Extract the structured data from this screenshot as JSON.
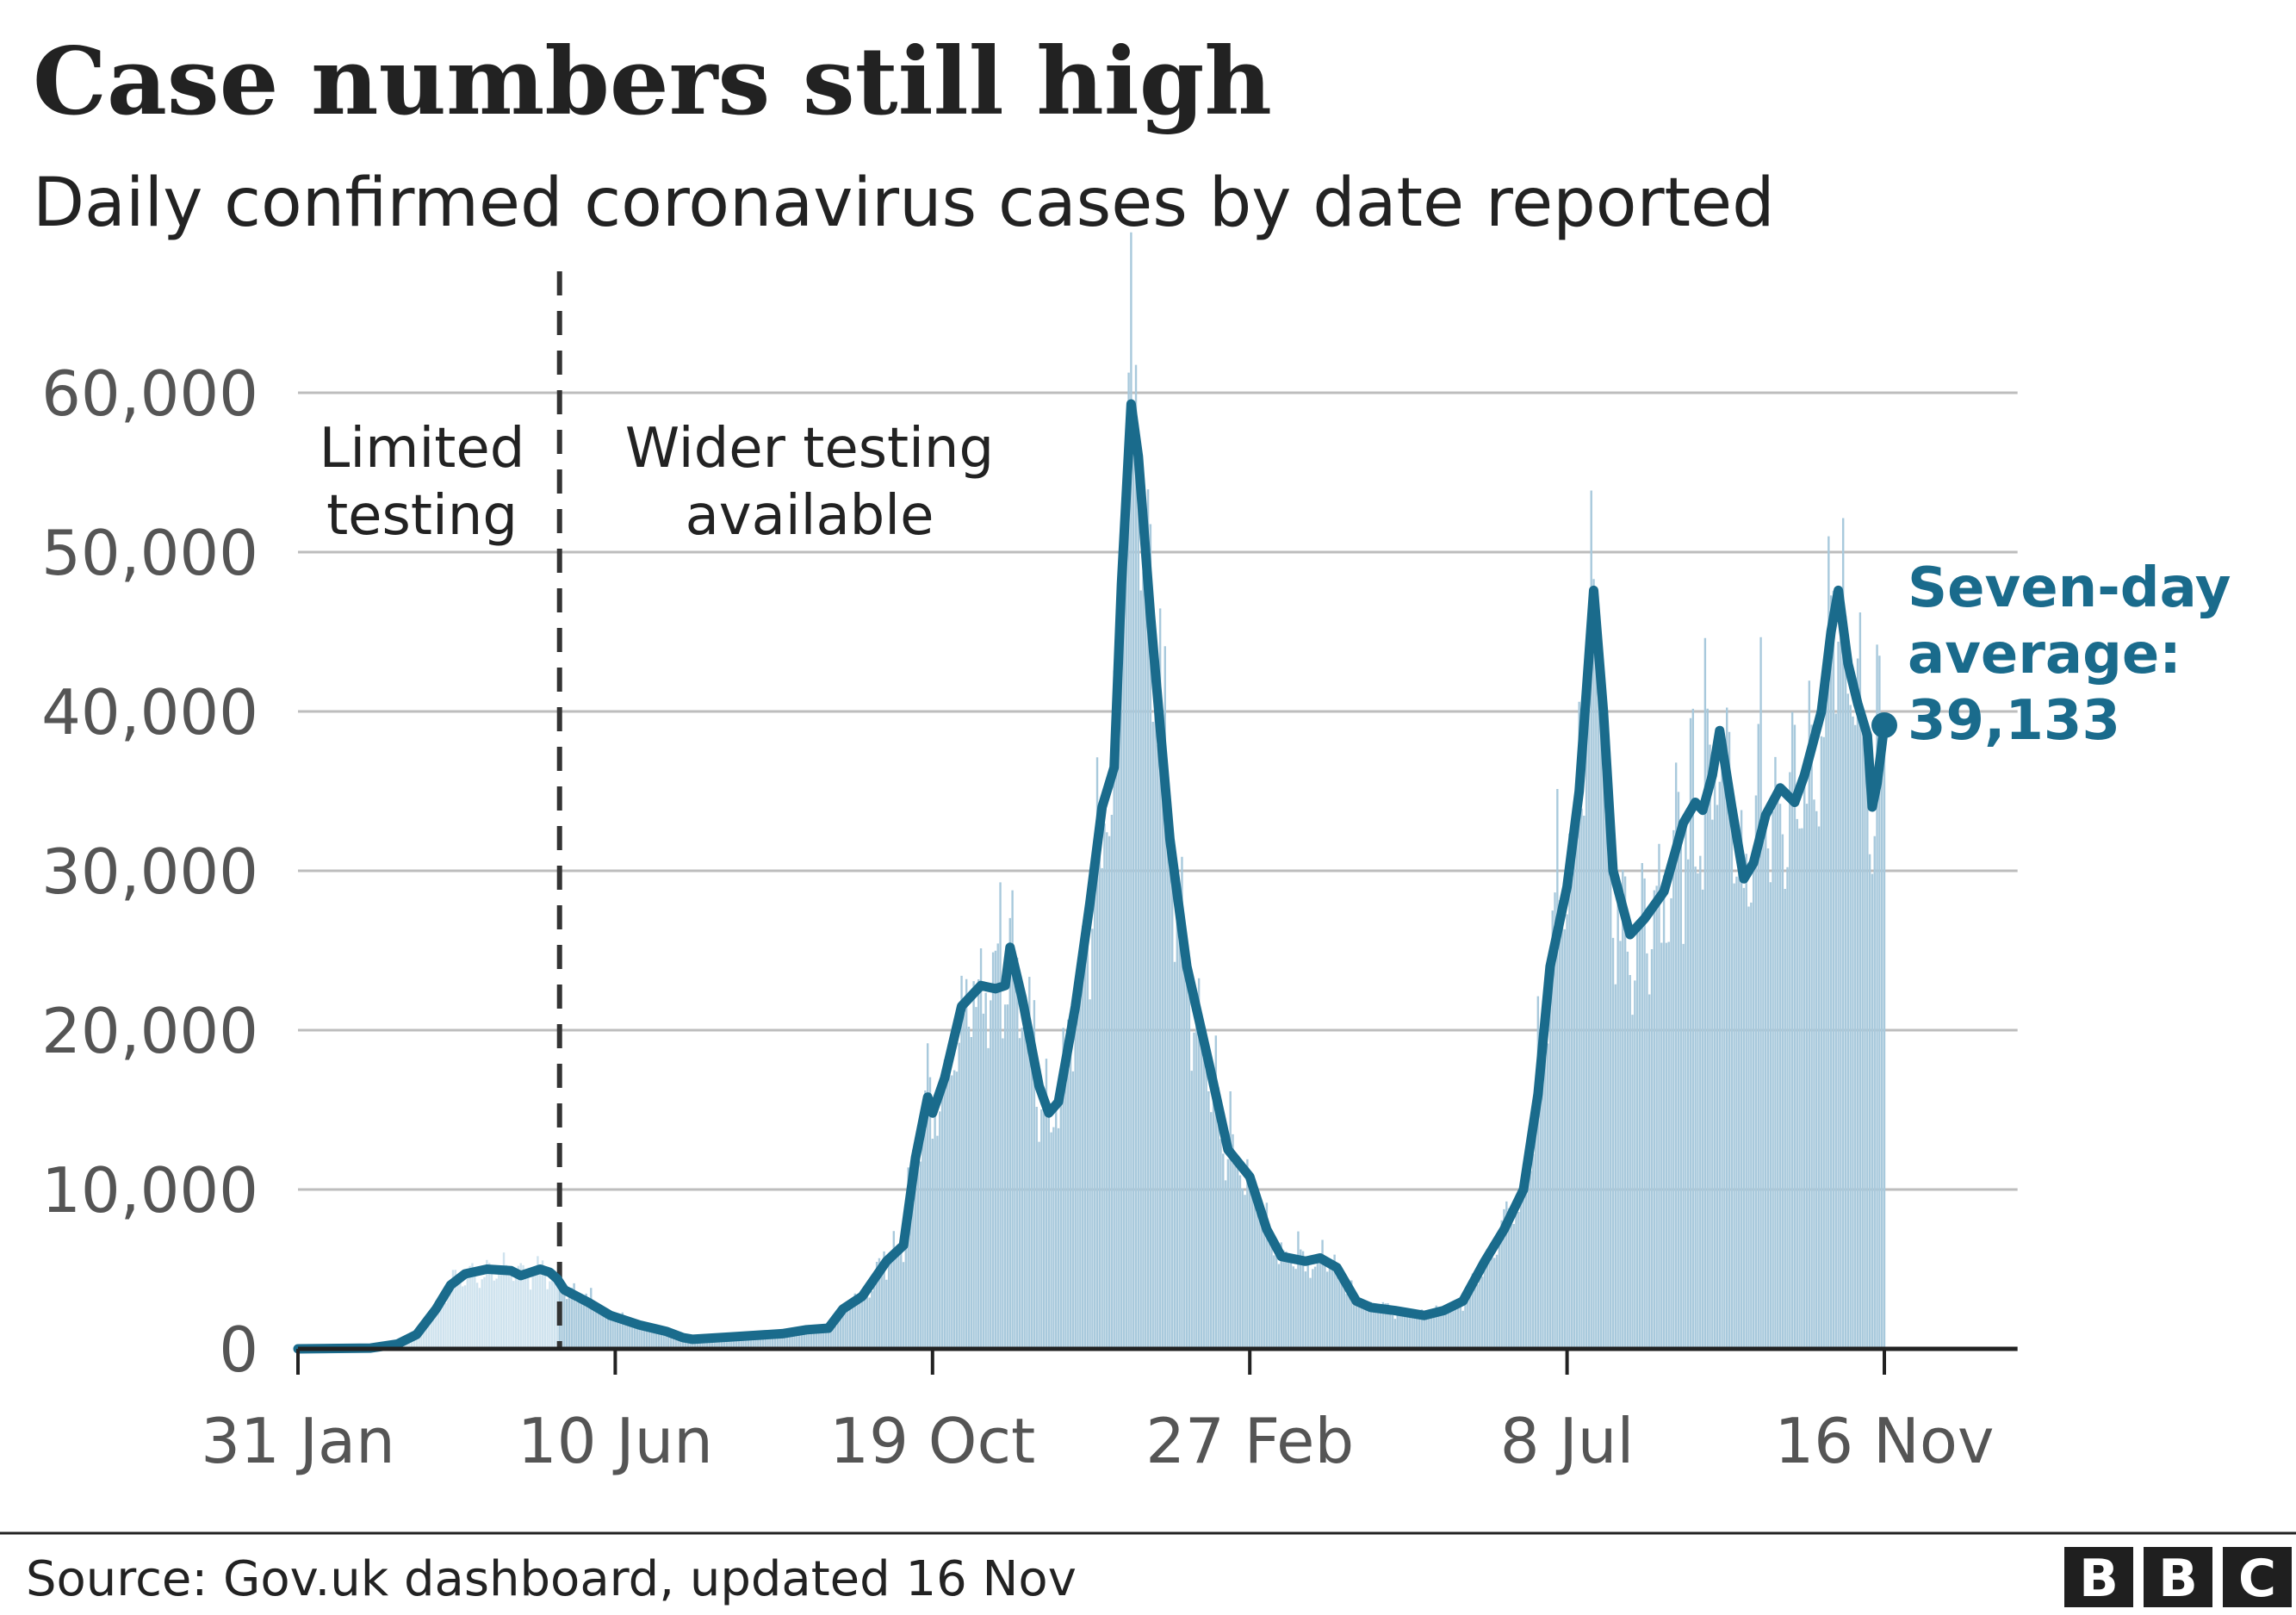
{
  "colors": {
    "line": "#1a6b8c",
    "bars": "#a8c9dc",
    "bars_early": "#cfe3ee",
    "grid": "#bdbdbd",
    "axis": "#222222",
    "brand": "#1f1f1f"
  },
  "source": "Source: Gov.uk dashboard, updated 16 Nov",
  "brand": {
    "letters": [
      "B",
      "B",
      "C"
    ]
  },
  "chart_data": {
    "type": "line",
    "title": "Case numbers still high",
    "subtitle": "Daily confirmed coronavirus cases by date reported",
    "xlabel": "",
    "ylabel": "",
    "x_start": "2020-01-31",
    "x_end": "2021-11-16",
    "x_axis_max": "2022-01-10",
    "ylim": [
      0,
      60000
    ],
    "yticks": [
      0,
      10000,
      20000,
      30000,
      40000,
      50000,
      60000
    ],
    "ytick_labels": [
      "0",
      "10,000",
      "20,000",
      "30,000",
      "40,000",
      "50,000",
      "60,000"
    ],
    "xticks": [
      {
        "date": "2020-01-31",
        "label": "31 Jan"
      },
      {
        "date": "2020-06-10",
        "label": "10 Jun"
      },
      {
        "date": "2020-10-19",
        "label": "19 Oct"
      },
      {
        "date": "2021-02-27",
        "label": "27 Feb"
      },
      {
        "date": "2021-07-08",
        "label": "8 Jul"
      },
      {
        "date": "2021-11-16",
        "label": "16 Nov"
      }
    ],
    "grid": true,
    "divider": {
      "date": "2020-05-18",
      "left_label": [
        "Limited",
        "testing"
      ],
      "right_label": [
        "Wider testing",
        "available"
      ]
    },
    "seven_day_average": {
      "name": "Seven-day average",
      "label": [
        "Seven-day",
        "average:",
        "39,133"
      ],
      "final_value": 39133,
      "points": [
        [
          "2020-01-31",
          0
        ],
        [
          "2020-03-01",
          50
        ],
        [
          "2020-03-12",
          300
        ],
        [
          "2020-03-20",
          900
        ],
        [
          "2020-03-28",
          2500
        ],
        [
          "2020-04-03",
          4000
        ],
        [
          "2020-04-09",
          4700
        ],
        [
          "2020-04-18",
          5000
        ],
        [
          "2020-04-28",
          4900
        ],
        [
          "2020-05-02",
          4600
        ],
        [
          "2020-05-06",
          4800
        ],
        [
          "2020-05-10",
          5000
        ],
        [
          "2020-05-14",
          4800
        ],
        [
          "2020-05-17",
          4400
        ],
        [
          "2020-05-20",
          3700
        ],
        [
          "2020-05-30",
          2900
        ],
        [
          "2020-06-08",
          2100
        ],
        [
          "2020-06-20",
          1500
        ],
        [
          "2020-07-01",
          1100
        ],
        [
          "2020-07-08",
          700
        ],
        [
          "2020-07-12",
          600
        ],
        [
          "2020-07-28",
          750
        ],
        [
          "2020-08-18",
          950
        ],
        [
          "2020-08-28",
          1200
        ],
        [
          "2020-09-06",
          1300
        ],
        [
          "2020-09-12",
          2500
        ],
        [
          "2020-09-20",
          3300
        ],
        [
          "2020-09-30",
          5500
        ],
        [
          "2020-10-07",
          6500
        ],
        [
          "2020-10-12",
          12000
        ],
        [
          "2020-10-17",
          15800
        ],
        [
          "2020-10-19",
          14800
        ],
        [
          "2020-10-24",
          17000
        ],
        [
          "2020-10-31",
          21500
        ],
        [
          "2020-11-08",
          22800
        ],
        [
          "2020-11-14",
          22600
        ],
        [
          "2020-11-18",
          22800
        ],
        [
          "2020-11-20",
          25200
        ],
        [
          "2020-11-25",
          22000
        ],
        [
          "2020-12-02",
          16500
        ],
        [
          "2020-12-06",
          14800
        ],
        [
          "2020-12-10",
          15500
        ],
        [
          "2020-12-17",
          21500
        ],
        [
          "2020-12-23",
          28000
        ],
        [
          "2020-12-28",
          34000
        ],
        [
          "2021-01-02",
          36500
        ],
        [
          "2021-01-05",
          48000
        ],
        [
          "2021-01-09",
          59300
        ],
        [
          "2021-01-12",
          56000
        ],
        [
          "2021-01-17",
          46000
        ],
        [
          "2021-01-25",
          32000
        ],
        [
          "2021-02-01",
          24000
        ],
        [
          "2021-02-10",
          18000
        ],
        [
          "2021-02-18",
          12500
        ],
        [
          "2021-02-27",
          10800
        ],
        [
          "2021-03-06",
          7500
        ],
        [
          "2021-03-12",
          5800
        ],
        [
          "2021-03-22",
          5500
        ],
        [
          "2021-03-28",
          5700
        ],
        [
          "2021-04-04",
          5100
        ],
        [
          "2021-04-12",
          3000
        ],
        [
          "2021-04-18",
          2600
        ],
        [
          "2021-04-28",
          2400
        ],
        [
          "2021-05-10",
          2100
        ],
        [
          "2021-05-18",
          2400
        ],
        [
          "2021-05-26",
          3000
        ],
        [
          "2021-06-04",
          5500
        ],
        [
          "2021-06-12",
          7500
        ],
        [
          "2021-06-20",
          10000
        ],
        [
          "2021-06-26",
          16000
        ],
        [
          "2021-07-01",
          24000
        ],
        [
          "2021-07-08",
          29000
        ],
        [
          "2021-07-13",
          35000
        ],
        [
          "2021-07-19",
          47600
        ],
        [
          "2021-07-23",
          40000
        ],
        [
          "2021-07-27",
          30000
        ],
        [
          "2021-08-03",
          26000
        ],
        [
          "2021-08-09",
          27000
        ],
        [
          "2021-08-17",
          28700
        ],
        [
          "2021-08-25",
          33000
        ],
        [
          "2021-08-30",
          34300
        ],
        [
          "2021-09-02",
          33800
        ],
        [
          "2021-09-06",
          36000
        ],
        [
          "2021-09-09",
          38800
        ],
        [
          "2021-09-14",
          34000
        ],
        [
          "2021-09-19",
          29500
        ],
        [
          "2021-09-23",
          30500
        ],
        [
          "2021-09-28",
          33500
        ],
        [
          "2021-10-04",
          35200
        ],
        [
          "2021-10-10",
          34300
        ],
        [
          "2021-10-14",
          36000
        ],
        [
          "2021-10-21",
          40000
        ],
        [
          "2021-10-25",
          45000
        ],
        [
          "2021-10-28",
          47600
        ],
        [
          "2021-11-01",
          43000
        ],
        [
          "2021-11-05",
          40500
        ],
        [
          "2021-11-09",
          38500
        ],
        [
          "2021-11-11",
          34000
        ],
        [
          "2021-11-13",
          35500
        ],
        [
          "2021-11-16",
          39133
        ]
      ]
    }
  }
}
